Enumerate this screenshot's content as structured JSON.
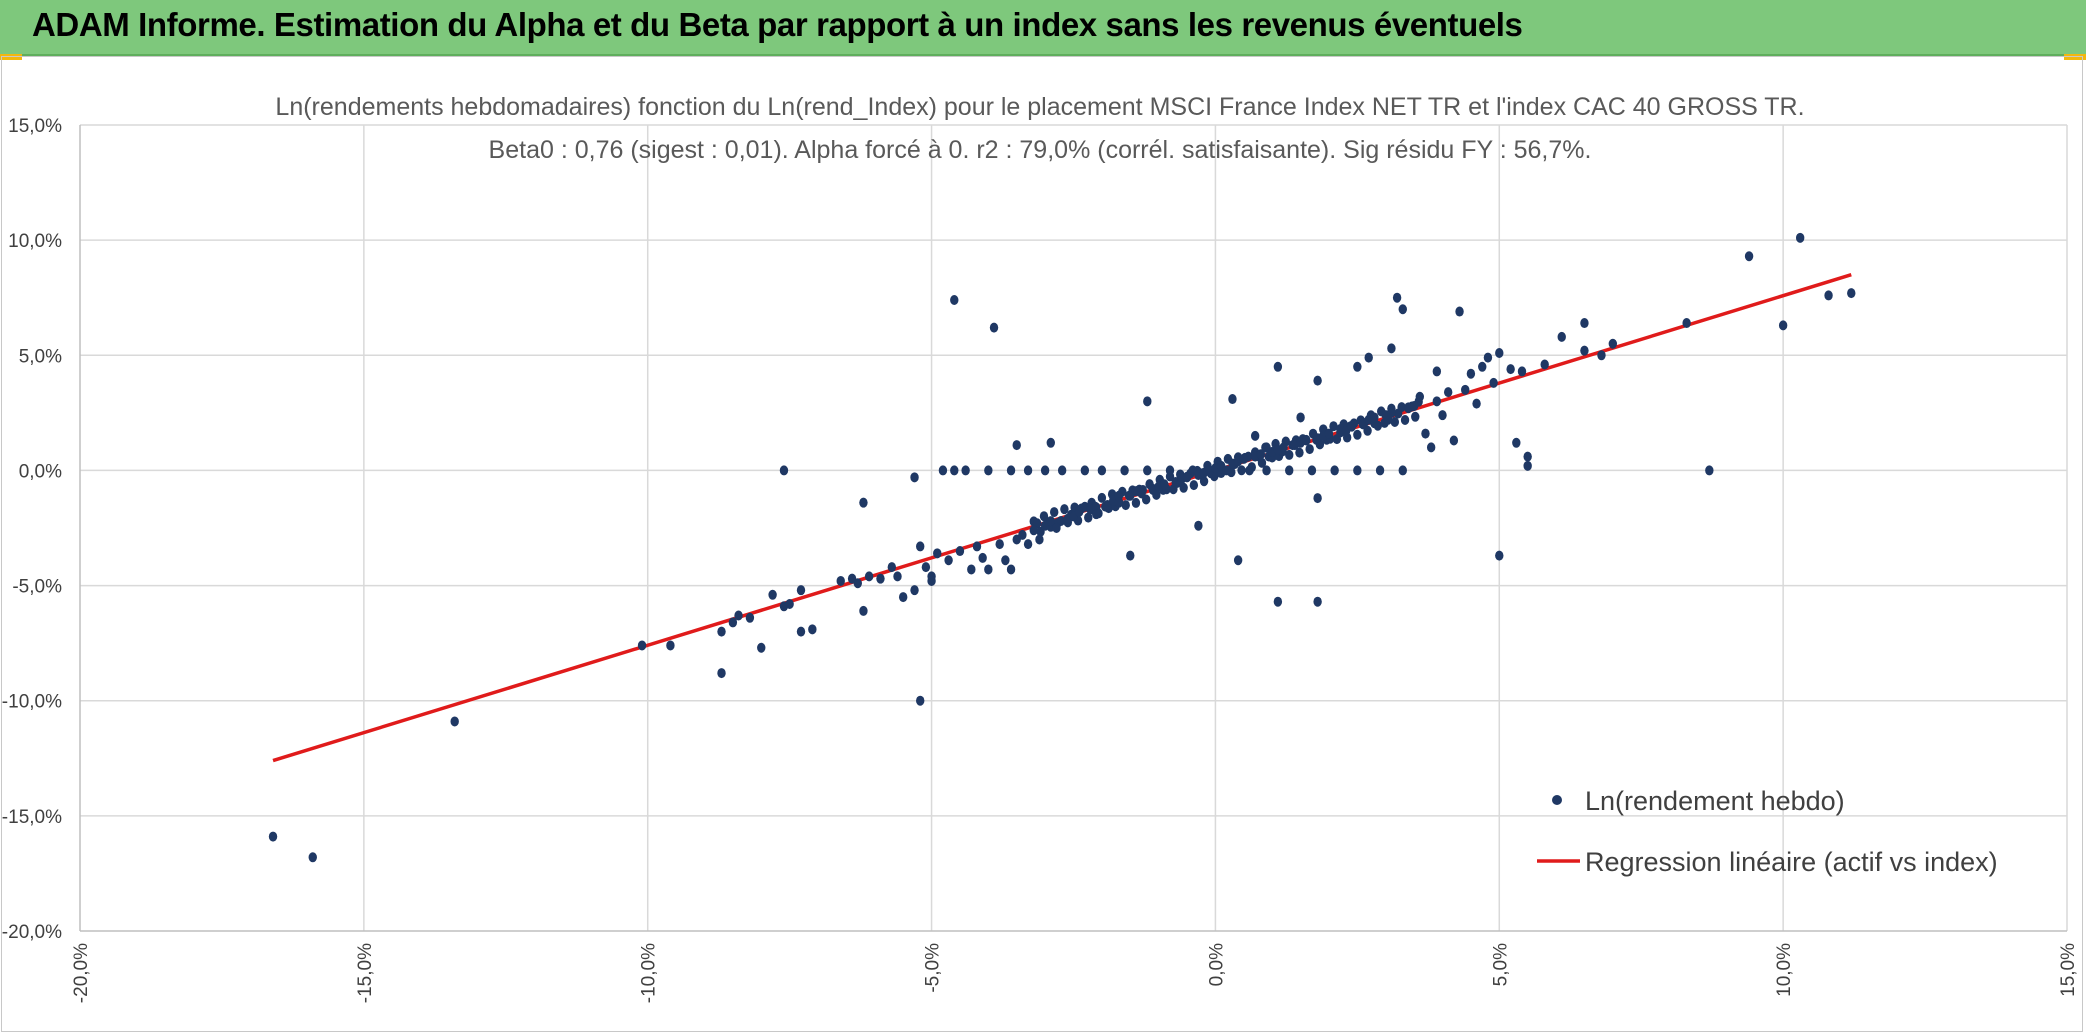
{
  "banner": {
    "title": "ADAM Informe. Estimation du Alpha et du Beta par rapport à un index sans les revenus éventuels",
    "background": "#7ec87c",
    "corner_accent": "#f2b70f"
  },
  "chart_data": {
    "type": "scatter",
    "title": "Ln(rendements hebdomadaires) fonction du Ln(rend_Index) pour le placement MSCI France Index NET TR et l'index CAC 40 GROSS TR.",
    "subtitle": "Beta0 : 0,76 (sigest : 0,01). Alpha forcé à 0. r2 : 79,0% (corrél. satisfaisante). Sig résidu FY : 56,7%.",
    "xlabel": "",
    "ylabel": "",
    "xlim": [
      -20,
      15
    ],
    "ylim": [
      -20,
      15
    ],
    "x_ticks": [
      -20,
      -15,
      -10,
      -5,
      0,
      5,
      10,
      15
    ],
    "y_ticks": [
      15,
      10,
      5,
      0,
      -5,
      -10,
      -15,
      -20
    ],
    "x_tick_labels": [
      "-20,0%",
      "-15,0%",
      "-10,0%",
      "-5,0%",
      "0,0%",
      "5,0%",
      "10,0%",
      "15,0%"
    ],
    "y_tick_labels": [
      "15,0%",
      "10,0%",
      "5,0%",
      "0,0%",
      "-5,0%",
      "-10,0%",
      "-15,0%",
      "-20,0%"
    ],
    "grid": true,
    "legend_position": "bottom-right",
    "series": [
      {
        "name": "Ln(rendement hebdo)",
        "kind": "points",
        "color": "#1f3864",
        "points": [
          [
            -16.6,
            -15.9
          ],
          [
            -15.9,
            -16.8
          ],
          [
            -13.4,
            -10.9
          ],
          [
            -10.1,
            -7.6
          ],
          [
            -9.6,
            -7.6
          ],
          [
            -8.7,
            -8.8
          ],
          [
            -8.7,
            -7.0
          ],
          [
            -8.5,
            -6.6
          ],
          [
            -8.4,
            -6.3
          ],
          [
            -8.2,
            -6.4
          ],
          [
            -8.0,
            -7.7
          ],
          [
            -7.8,
            -5.4
          ],
          [
            -7.6,
            -5.9
          ],
          [
            -7.5,
            -5.8
          ],
          [
            -7.6,
            0.0
          ],
          [
            -7.3,
            -5.2
          ],
          [
            -7.3,
            -7.0
          ],
          [
            -7.1,
            -6.9
          ],
          [
            -6.6,
            -4.8
          ],
          [
            -6.4,
            -4.7
          ],
          [
            -6.3,
            -4.9
          ],
          [
            -6.2,
            -6.1
          ],
          [
            -6.2,
            -1.4
          ],
          [
            -6.1,
            -4.6
          ],
          [
            -5.9,
            -4.7
          ],
          [
            -5.7,
            -4.2
          ],
          [
            -5.6,
            -4.6
          ],
          [
            -5.5,
            -5.5
          ],
          [
            -5.3,
            -5.2
          ],
          [
            -5.3,
            -0.3
          ],
          [
            -5.2,
            -10.0
          ],
          [
            -5.1,
            -4.2
          ],
          [
            -5.2,
            -3.3
          ],
          [
            -5.0,
            -4.8
          ],
          [
            -5.0,
            -4.6
          ],
          [
            -4.9,
            -3.6
          ],
          [
            -4.8,
            0.0
          ],
          [
            -4.7,
            -3.9
          ],
          [
            -4.6,
            0.0
          ],
          [
            -4.6,
            7.4
          ],
          [
            -4.5,
            -3.5
          ],
          [
            -4.4,
            0.0
          ],
          [
            -4.3,
            -4.3
          ],
          [
            -4.2,
            -3.3
          ],
          [
            -4.1,
            -3.8
          ],
          [
            -4.0,
            0.0
          ],
          [
            -3.9,
            6.2
          ],
          [
            -4.0,
            -4.3
          ],
          [
            -3.8,
            -3.2
          ],
          [
            -3.7,
            -3.9
          ],
          [
            -3.6,
            -4.3
          ],
          [
            -3.6,
            0.0
          ],
          [
            -3.5,
            -3.0
          ],
          [
            -3.5,
            1.1
          ],
          [
            -3.4,
            -2.8
          ],
          [
            -3.3,
            -3.2
          ],
          [
            -3.3,
            0.0
          ],
          [
            -3.2,
            -2.6
          ],
          [
            -3.1,
            -3.0
          ],
          [
            -3.0,
            0.0
          ],
          [
            -3.0,
            -2.4
          ],
          [
            -2.9,
            -2.2
          ],
          [
            -2.9,
            1.2
          ],
          [
            -2.8,
            -2.5
          ],
          [
            -2.7,
            0.0
          ],
          [
            -2.6,
            -2.1
          ],
          [
            -2.5,
            -2.0
          ],
          [
            -2.4,
            -1.8
          ],
          [
            -2.3,
            0.0
          ],
          [
            -2.2,
            -1.7
          ],
          [
            -2.1,
            -1.6
          ],
          [
            -2.1,
            -1.9
          ],
          [
            -2.0,
            0.0
          ],
          [
            -1.9,
            -1.5
          ],
          [
            -1.8,
            -1.3
          ],
          [
            -1.7,
            -1.1
          ],
          [
            -1.7,
            -1.4
          ],
          [
            -1.6,
            0.0
          ],
          [
            -1.5,
            -1.1
          ],
          [
            -1.5,
            -3.7
          ],
          [
            -1.4,
            -0.9
          ],
          [
            -1.3,
            -1.0
          ],
          [
            -1.2,
            0.0
          ],
          [
            -1.2,
            3.0
          ],
          [
            -1.1,
            -0.8
          ],
          [
            -1.0,
            -0.7
          ],
          [
            -0.9,
            -0.6
          ],
          [
            -0.8,
            0.0
          ],
          [
            -0.7,
            -0.5
          ],
          [
            -0.6,
            -0.4
          ],
          [
            -0.5,
            -0.3
          ],
          [
            -0.4,
            0.0
          ],
          [
            -0.3,
            -0.2
          ],
          [
            -0.3,
            -2.4
          ],
          [
            -0.2,
            -0.1
          ],
          [
            -0.1,
            0.0
          ],
          [
            0.0,
            0.1
          ],
          [
            0.1,
            0.2
          ],
          [
            0.2,
            0.0
          ],
          [
            0.3,
            0.3
          ],
          [
            0.3,
            3.1
          ],
          [
            0.4,
            0.4
          ],
          [
            0.4,
            -3.9
          ],
          [
            0.5,
            0.5
          ],
          [
            0.6,
            0.0
          ],
          [
            0.7,
            0.6
          ],
          [
            0.7,
            1.5
          ],
          [
            0.8,
            0.7
          ],
          [
            0.9,
            0.0
          ],
          [
            0.9,
            1.0
          ],
          [
            1.0,
            0.8
          ],
          [
            1.1,
            0.9
          ],
          [
            1.1,
            4.5
          ],
          [
            1.1,
            -5.7
          ],
          [
            1.2,
            1.0
          ],
          [
            1.3,
            0.0
          ],
          [
            1.4,
            1.1
          ],
          [
            1.5,
            1.2
          ],
          [
            1.5,
            2.3
          ],
          [
            1.6,
            1.3
          ],
          [
            1.7,
            0.0
          ],
          [
            1.8,
            1.4
          ],
          [
            1.8,
            -5.7
          ],
          [
            1.8,
            -1.2
          ],
          [
            1.9,
            1.5
          ],
          [
            1.8,
            3.9
          ],
          [
            2.0,
            1.6
          ],
          [
            2.1,
            0.0
          ],
          [
            2.2,
            1.8
          ],
          [
            2.3,
            1.7
          ],
          [
            2.4,
            1.9
          ],
          [
            2.5,
            0.0
          ],
          [
            2.5,
            4.5
          ],
          [
            2.6,
            2.0
          ],
          [
            2.7,
            2.2
          ],
          [
            2.7,
            4.9
          ],
          [
            2.8,
            2.3
          ],
          [
            2.9,
            0.0
          ],
          [
            3.0,
            2.4
          ],
          [
            3.1,
            2.5
          ],
          [
            3.1,
            5.3
          ],
          [
            3.2,
            7.5
          ],
          [
            3.3,
            7.0
          ],
          [
            3.3,
            0.0
          ],
          [
            3.4,
            2.7
          ],
          [
            3.5,
            2.8
          ],
          [
            3.6,
            3.2
          ],
          [
            3.7,
            1.6
          ],
          [
            3.8,
            1.0
          ],
          [
            3.9,
            3.0
          ],
          [
            3.9,
            4.3
          ],
          [
            4.0,
            2.4
          ],
          [
            4.1,
            3.4
          ],
          [
            4.2,
            1.3
          ],
          [
            4.3,
            6.9
          ],
          [
            4.4,
            3.5
          ],
          [
            4.5,
            4.2
          ],
          [
            4.6,
            2.9
          ],
          [
            4.7,
            4.5
          ],
          [
            4.8,
            4.9
          ],
          [
            4.9,
            3.8
          ],
          [
            5.0,
            5.1
          ],
          [
            5.0,
            -3.7
          ],
          [
            5.2,
            4.4
          ],
          [
            5.3,
            1.2
          ],
          [
            5.4,
            4.3
          ],
          [
            5.5,
            0.6
          ],
          [
            5.5,
            0.2
          ],
          [
            5.8,
            4.6
          ],
          [
            6.1,
            5.8
          ],
          [
            6.5,
            6.4
          ],
          [
            6.5,
            5.2
          ],
          [
            6.8,
            5.0
          ],
          [
            7.0,
            5.5
          ],
          [
            8.3,
            6.4
          ],
          [
            8.7,
            0.0
          ],
          [
            9.4,
            9.3
          ],
          [
            10.0,
            6.3
          ],
          [
            10.3,
            10.1
          ],
          [
            10.8,
            7.6
          ],
          [
            11.2,
            7.7
          ]
        ]
      },
      {
        "name": "Regression linéaire (actif vs index)",
        "kind": "line",
        "color": "#e01b1b",
        "x": [
          -16.6,
          11.2
        ],
        "y": [
          -12.6,
          8.5
        ]
      }
    ]
  }
}
